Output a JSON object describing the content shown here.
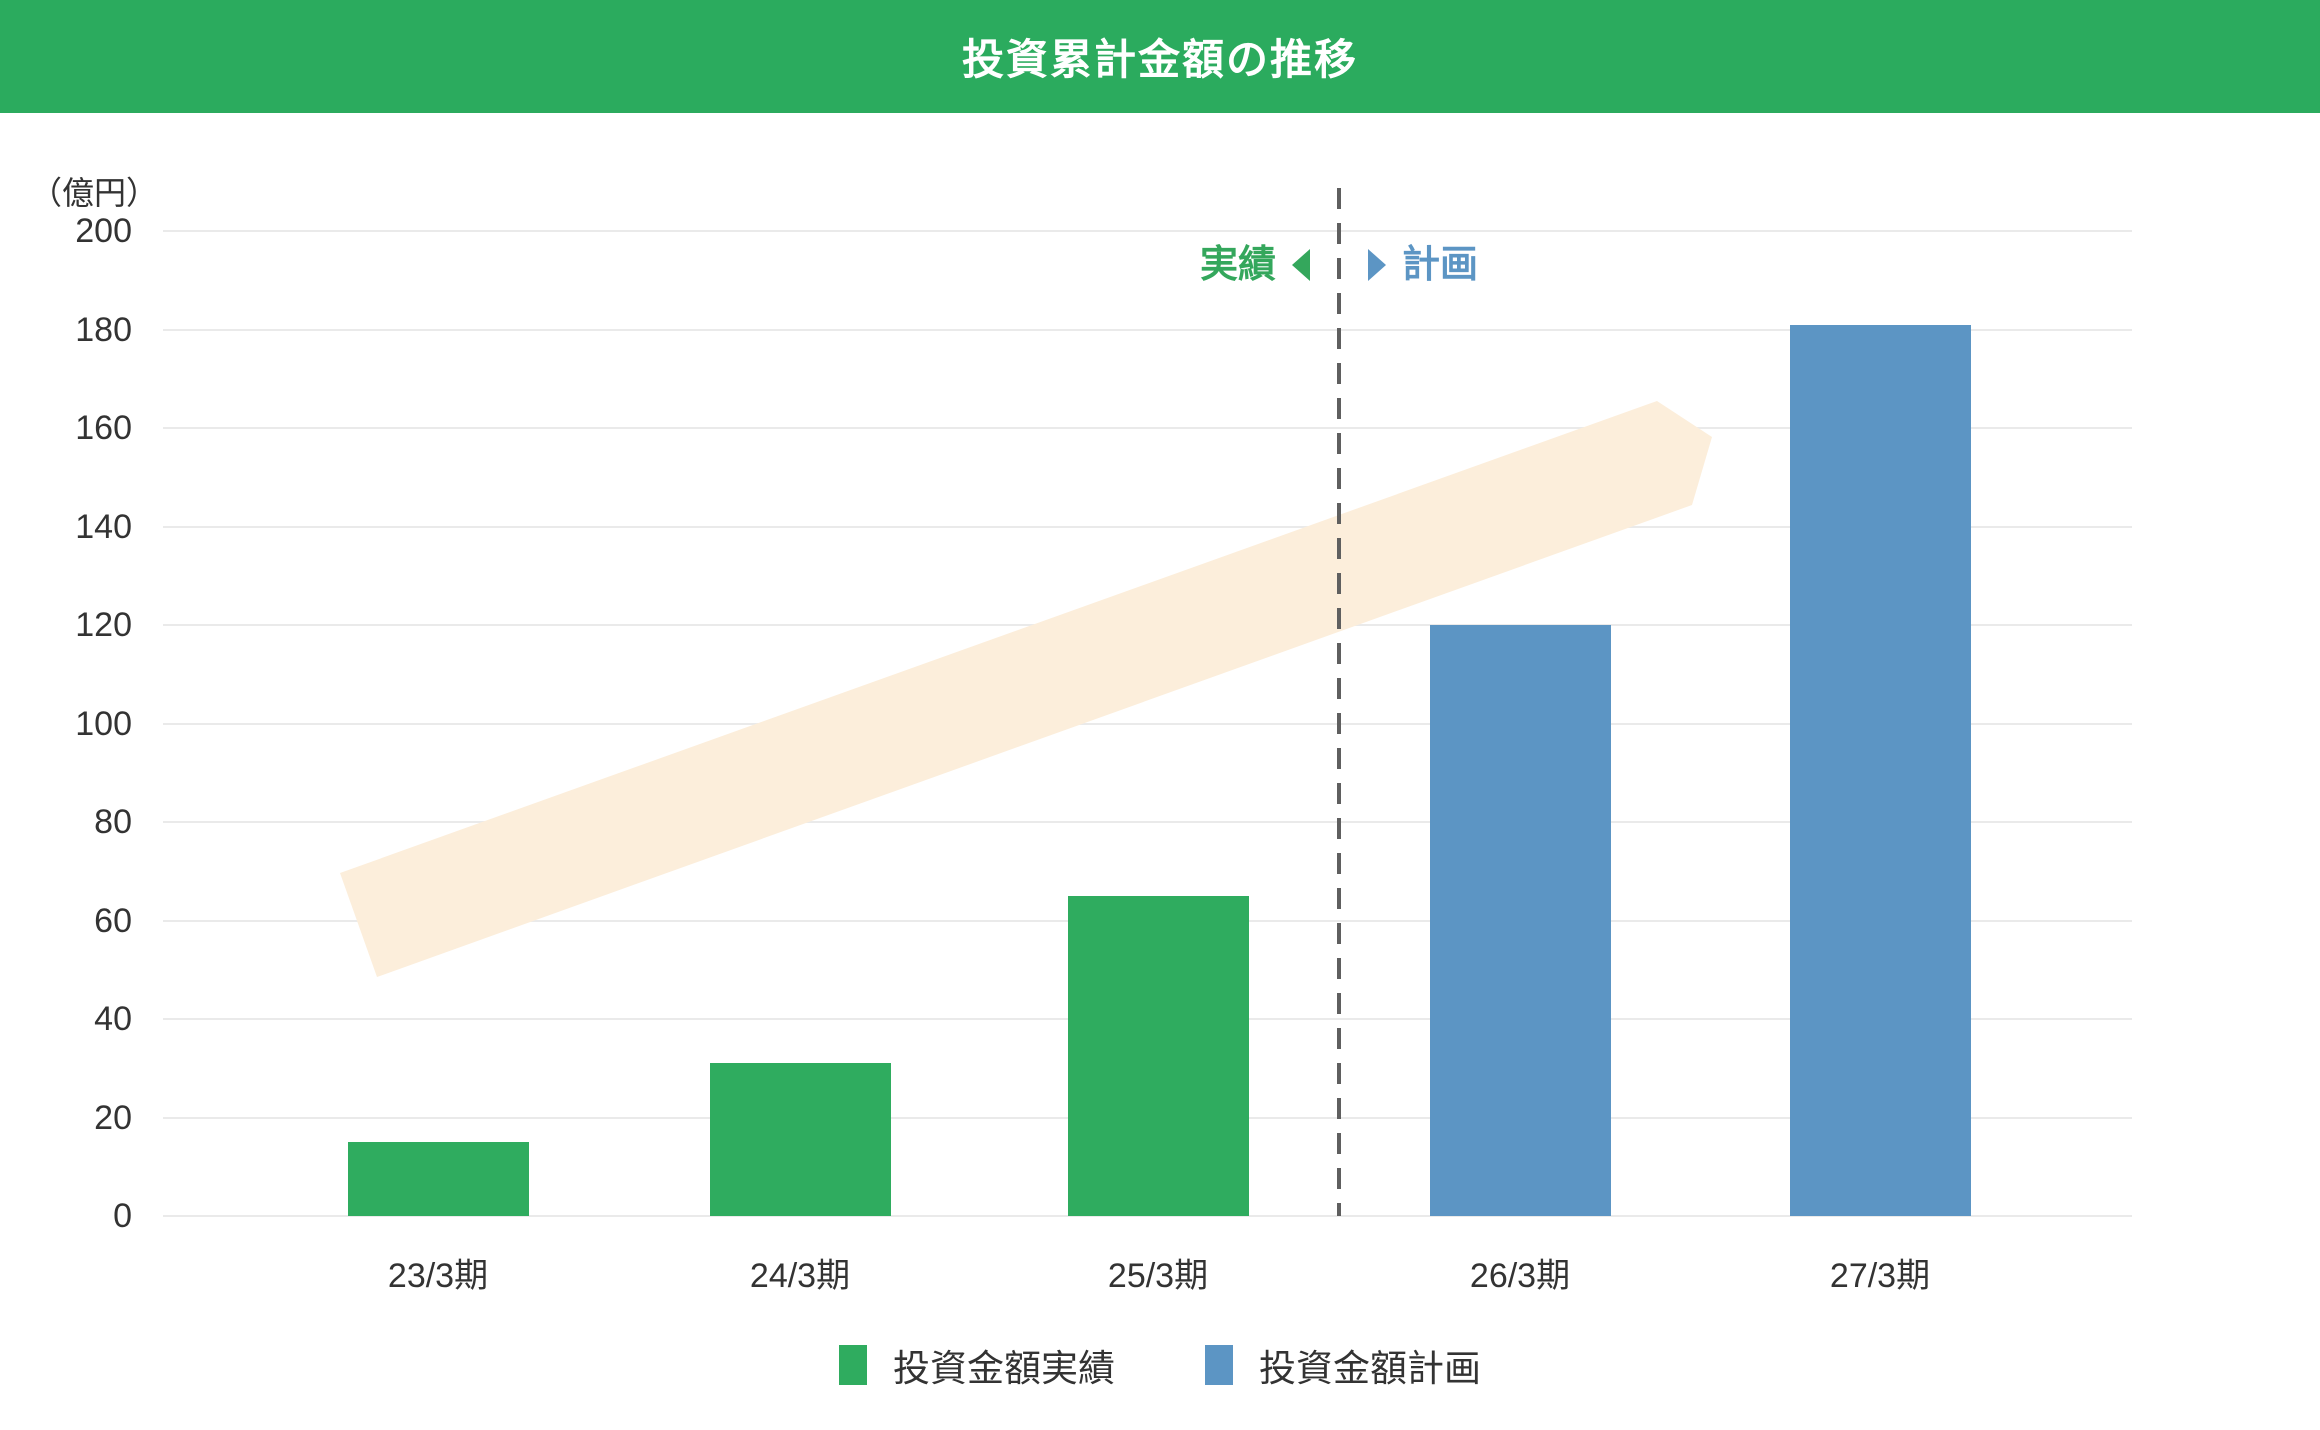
{
  "header": {
    "title": "投資累計金額の推移"
  },
  "colors": {
    "header_bg": "#2BAB5E",
    "actual_green": "#2FAC5F",
    "plan_blue": "#5C95C4",
    "arrow_cream": "#FCEEDB",
    "grid_gray": "#EAEAEA",
    "dash_gray": "#5F5F5F",
    "text_dark": "#333333",
    "label_green": "#34A75C",
    "label_blue": "#5C95C4"
  },
  "chart_data": {
    "type": "bar",
    "title": "投資累計金額の推移",
    "unit_label": "（億円）",
    "categories": [
      "23/3期",
      "24/3期",
      "25/3期",
      "26/3期",
      "27/3期"
    ],
    "series": [
      {
        "name": "投資金額実績",
        "color": "#2FAC5F",
        "values": [
          15,
          31,
          65,
          null,
          null
        ]
      },
      {
        "name": "投資金額計画",
        "color": "#5C95C4",
        "values": [
          null,
          null,
          null,
          120,
          181
        ]
      }
    ],
    "ylim": [
      0,
      200
    ],
    "ytick_step": 20,
    "grid": true,
    "legend_position": "bottom",
    "divider": {
      "after_category": "25/3期",
      "left_label": "実績",
      "right_label": "計画",
      "style": "vertical dashed line"
    },
    "annotations": [
      "upward-trend-arrow (light cream band from lower-left to upper-right)"
    ]
  },
  "legend": {
    "items": [
      {
        "label": "投資金額実績",
        "color": "#2FAC5F"
      },
      {
        "label": "投資金額計画",
        "color": "#5C95C4"
      }
    ]
  }
}
